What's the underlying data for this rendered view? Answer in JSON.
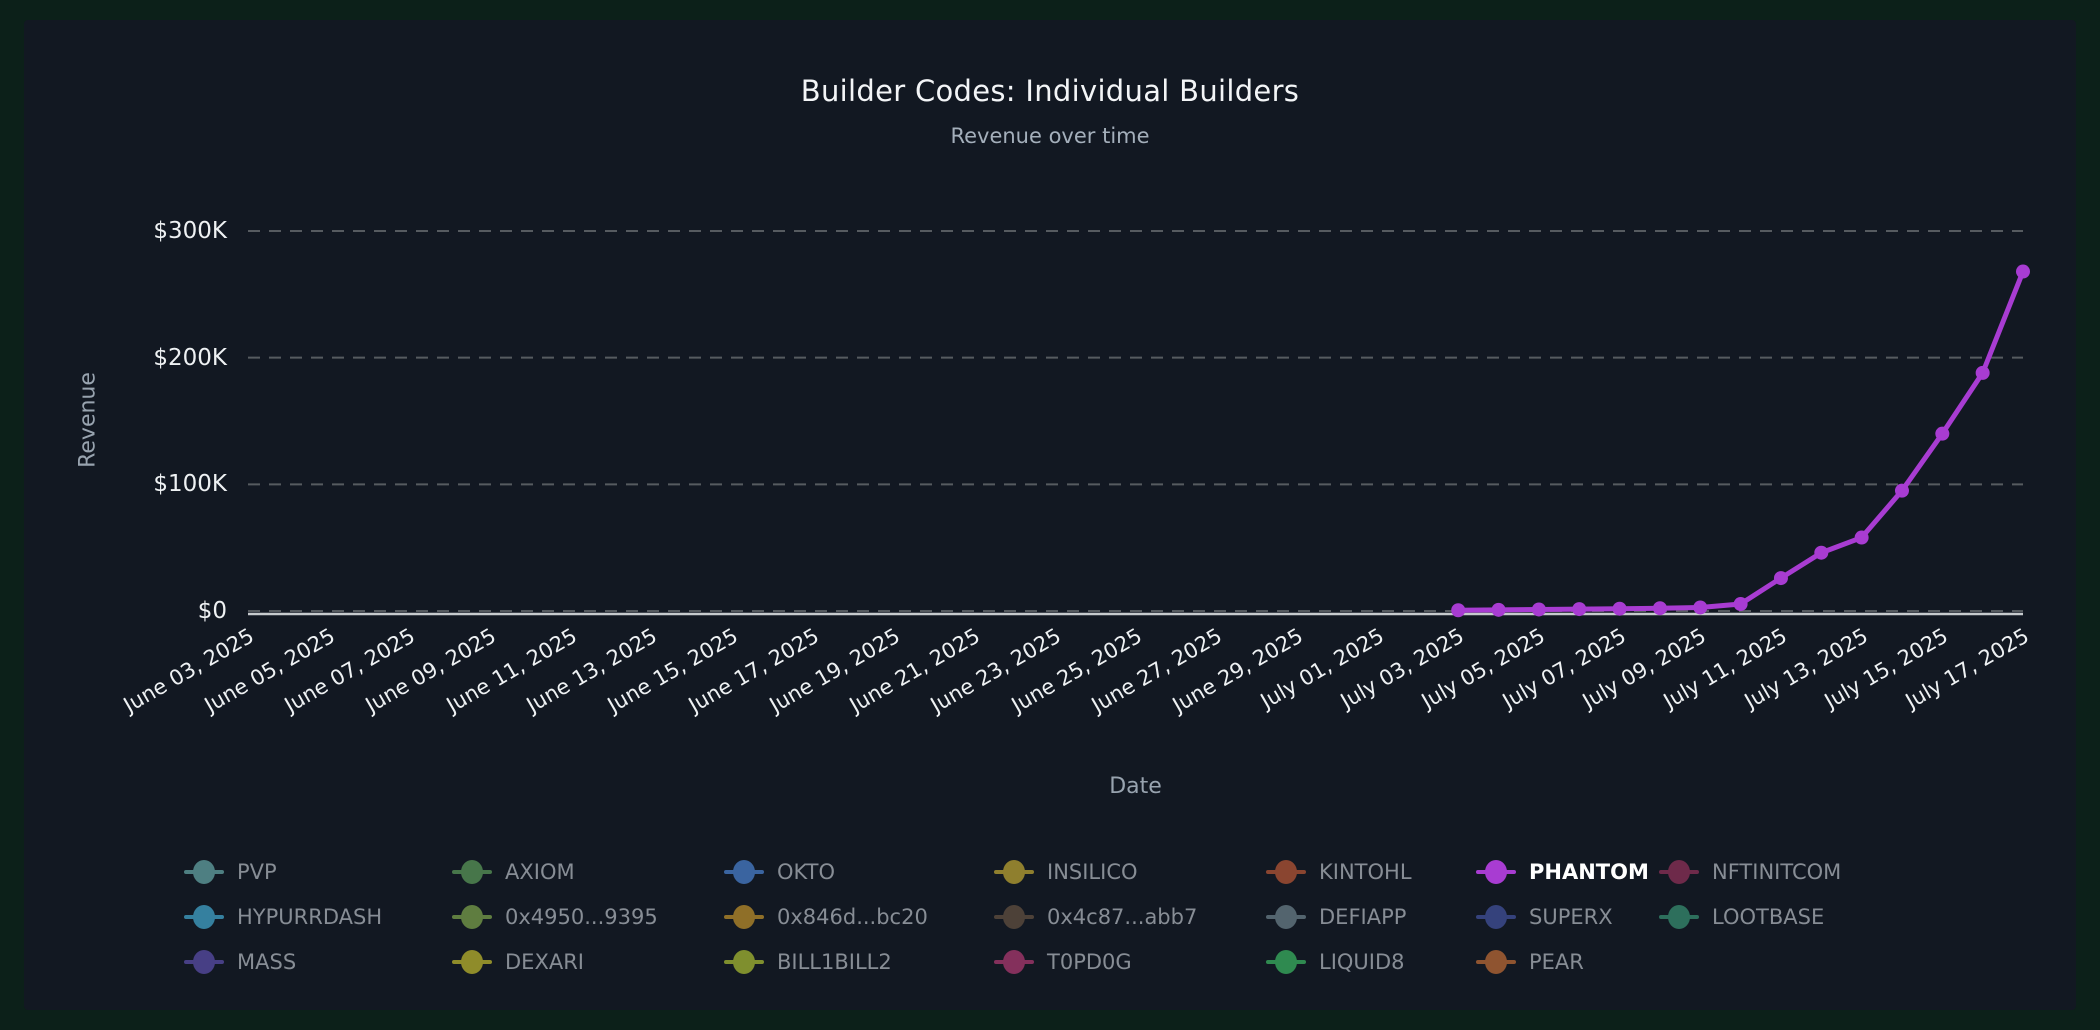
{
  "header": {
    "title": "Builder Codes: Individual Builders",
    "subtitle": "Revenue over time"
  },
  "chart_data": {
    "type": "line",
    "title": "Builder Codes: Individual Builders",
    "subtitle": "Revenue over time",
    "xlabel": "Date",
    "ylabel": "Revenue",
    "ylim": [
      0,
      300000
    ],
    "ytick_labels": [
      "$0",
      "$100K",
      "$200K",
      "$300K"
    ],
    "ytick_values": [
      0,
      100000,
      200000,
      300000
    ],
    "grid": "horizontal dashed gridlines, solid zero baseline",
    "legend_position": "bottom",
    "x_range": [
      "June 03, 2025",
      "July 17, 2025"
    ],
    "xtick_labels": [
      "June 03, 2025",
      "June 05, 2025",
      "June 07, 2025",
      "June 09, 2025",
      "June 11, 2025",
      "June 13, 2025",
      "June 15, 2025",
      "June 17, 2025",
      "June 19, 2025",
      "June 21, 2025",
      "June 23, 2025",
      "June 25, 2025",
      "June 27, 2025",
      "June 29, 2025",
      "July 01, 2025",
      "July 03, 2025",
      "July 05, 2025",
      "July 07, 2025",
      "July 09, 2025",
      "July 11, 2025",
      "July 13, 2025",
      "July 15, 2025",
      "July 17, 2025"
    ],
    "series": [
      {
        "name": "PHANTOM",
        "color": "#a83cd2",
        "x": [
          "July 03, 2025",
          "July 04, 2025",
          "July 05, 2025",
          "July 06, 2025",
          "July 07, 2025",
          "July 08, 2025",
          "July 09, 2025",
          "July 10, 2025",
          "July 11, 2025",
          "July 12, 2025",
          "July 13, 2025",
          "July 14, 2025",
          "July 15, 2025",
          "July 16, 2025",
          "July 17, 2025"
        ],
        "y": [
          600,
          900,
          1200,
          1500,
          1800,
          2200,
          2800,
          5500,
          26000,
          46000,
          58000,
          95000,
          140000,
          188000,
          268000
        ]
      }
    ]
  },
  "legend": {
    "rows": [
      [
        {
          "name": "PVP",
          "color": "#4e7f82",
          "selected": false
        },
        {
          "name": "AXIOM",
          "color": "#47764a",
          "selected": false
        },
        {
          "name": "OKTO",
          "color": "#3a64a0",
          "selected": false
        },
        {
          "name": "INSILICO",
          "color": "#8f7f2e",
          "selected": false
        },
        {
          "name": "KINTOHL",
          "color": "#8a4530",
          "selected": false
        },
        {
          "name": "PHANTOM",
          "color": "#a83cd2",
          "selected": true
        },
        {
          "name": "NFTINITCOM",
          "color": "#6e2a4a",
          "selected": false
        }
      ],
      [
        {
          "name": "HYPURRDASH",
          "color": "#35809f",
          "selected": false
        },
        {
          "name": "0x4950...9395",
          "color": "#5f7d40",
          "selected": false
        },
        {
          "name": "0x846d...bc20",
          "color": "#8f6f28",
          "selected": false
        },
        {
          "name": "0x4c87...abb7",
          "color": "#4d4138",
          "selected": false
        },
        {
          "name": "DEFIAPP",
          "color": "#53646e",
          "selected": false
        },
        {
          "name": "SUPERX",
          "color": "#35427c",
          "selected": false
        },
        {
          "name": "LOOTBASE",
          "color": "#2d6f5c",
          "selected": false
        }
      ],
      [
        {
          "name": "MASS",
          "color": "#473f85",
          "selected": false
        },
        {
          "name": "DEXARI",
          "color": "#8f8c2a",
          "selected": false
        },
        {
          "name": "BILL1BILL2",
          "color": "#7f8f2e",
          "selected": false
        },
        {
          "name": "T0PD0G",
          "color": "#84305c",
          "selected": false
        },
        {
          "name": "LIQUID8",
          "color": "#2f8a50",
          "selected": false
        },
        {
          "name": "PEAR",
          "color": "#8f5430",
          "selected": false
        }
      ]
    ]
  },
  "colors": {
    "page_background": "#0c2019",
    "card_background": "#121822",
    "gridline": "#565b60",
    "zero_line": "#c6cacd",
    "highlight_series": "#a83cd2",
    "dim_text": "#878d95",
    "axis_text": "#eef1f3",
    "muted_label": "#98a3af"
  }
}
